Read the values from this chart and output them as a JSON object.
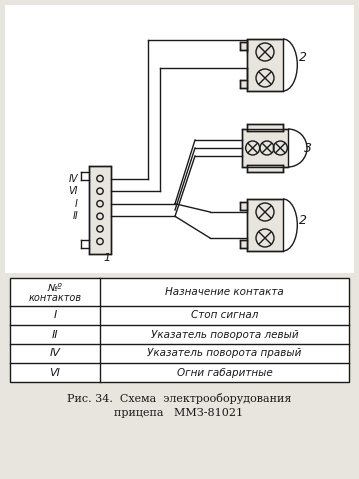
{
  "bg_color": "#e8e4de",
  "line_color": "#1a1a1a",
  "title_caption": "Рис. 34.  Схема  электрооборудования",
  "title_caption2": "прицепа   ММЗ-81021",
  "table_header_col1": "№º\nконтактов",
  "table_header_col2": "Назначение контакта",
  "table_rows": [
    [
      "I",
      "Стоп сигнал"
    ],
    [
      "II",
      "Указатель поворота левый"
    ],
    [
      "IV",
      "Указатель поворота правый"
    ],
    [
      "VI",
      "Огни габаритные"
    ]
  ],
  "conn_labels": [
    "IV",
    "VI",
    "I",
    "II",
    "",
    ""
  ],
  "lamp_top_label": "2",
  "lamp_mid_label": "3",
  "lamp_bot_label": "2",
  "pin1_label": "1"
}
